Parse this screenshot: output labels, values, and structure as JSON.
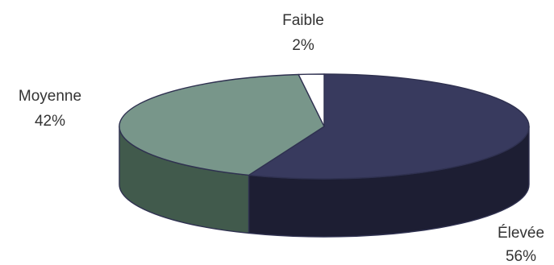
{
  "chart_data": {
    "type": "pie",
    "style": "3d",
    "categories": [
      "Élevée",
      "Moyenne",
      "Faible"
    ],
    "values": [
      56,
      42,
      2
    ],
    "value_labels": [
      "56%",
      "42%",
      "2%"
    ],
    "colors": {
      "Élevée": "#383A5E",
      "Moyenne": "#78968A",
      "Faible": "#FFFFFF"
    },
    "side_colors": {
      "Élevée": "#1D1E33",
      "Moyenne": "#415A4C"
    },
    "edge_color": "#2F3150",
    "legend": "none"
  }
}
